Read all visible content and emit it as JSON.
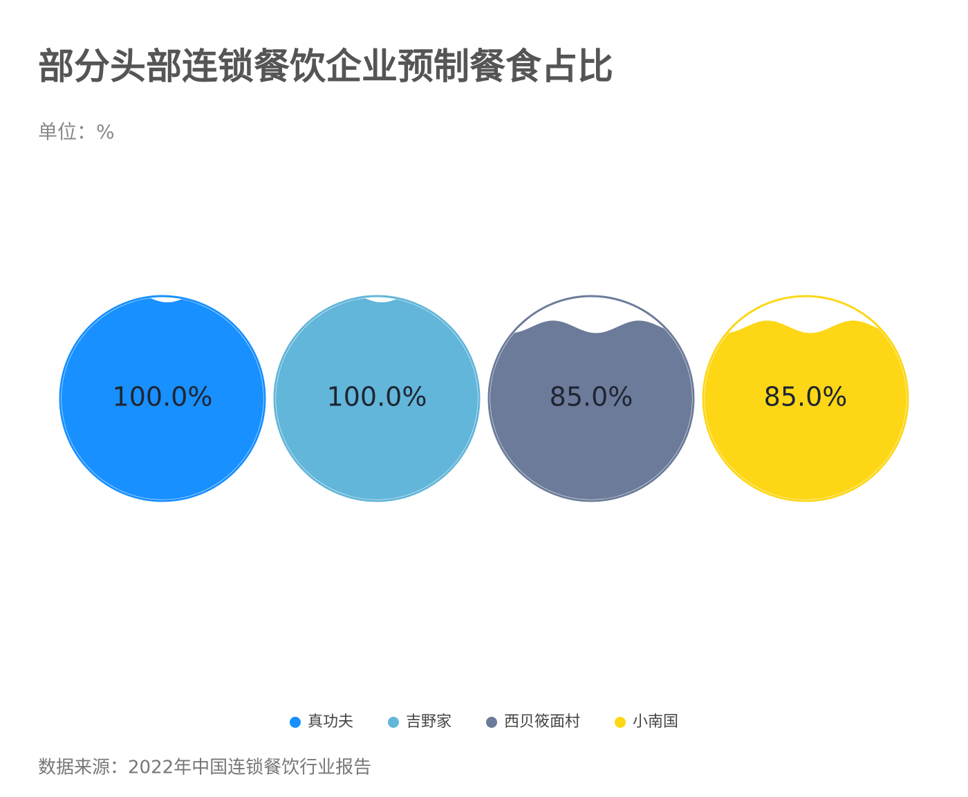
{
  "chart_data": {
    "type": "liquidfill",
    "title": "部分头部连锁餐饮企业预制餐食占比",
    "subtitle": "单位：%",
    "source": "数据来源：2022年中国连锁餐饮行业报告",
    "categories": [
      "真功夫",
      "吉野家",
      "西贝筱面村",
      "小南国"
    ],
    "values": [
      100,
      100,
      85,
      85
    ],
    "value_labels": [
      "100.0%",
      "100.0%",
      "85.0%",
      "85.0%"
    ],
    "colors": [
      "#1890ff",
      "#62b6d9",
      "#6c7b99",
      "#fdd716"
    ],
    "ylim": [
      0,
      100
    ],
    "legend": "bottom"
  }
}
